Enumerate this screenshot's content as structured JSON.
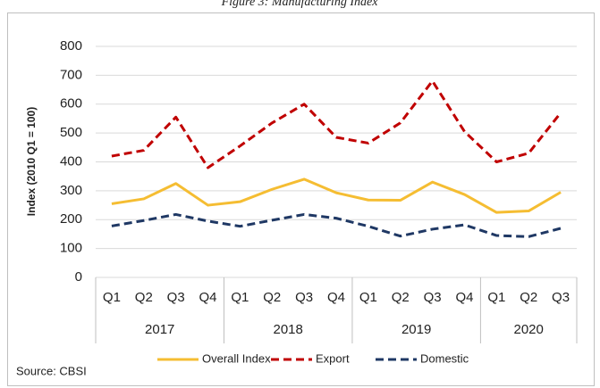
{
  "chart_data": {
    "type": "line",
    "title": "Figure 3: Manufacturing Index",
    "y_label": "Index (2010 Q1 = 100)",
    "source": "Source: CBSI",
    "categories": [
      "Q1",
      "Q2",
      "Q3",
      "Q4",
      "Q1",
      "Q2",
      "Q3",
      "Q4",
      "Q1",
      "Q2",
      "Q3",
      "Q4",
      "Q1",
      "Q2",
      "Q3"
    ],
    "category_groups": [
      {
        "label": "2017",
        "count": 4
      },
      {
        "label": "2018",
        "count": 4
      },
      {
        "label": "2019",
        "count": 4
      },
      {
        "label": "2020",
        "count": 3
      }
    ],
    "series": [
      {
        "name": "Overall Index",
        "color": "#f5bd32",
        "dash": "solid",
        "values": [
          255,
          272,
          325,
          250,
          262,
          305,
          340,
          293,
          268,
          267,
          330,
          287,
          225,
          230,
          295
        ]
      },
      {
        "name": "Export",
        "color": "#c00000",
        "dash": "dashed",
        "values": [
          420,
          440,
          555,
          380,
          455,
          535,
          600,
          485,
          465,
          535,
          680,
          505,
          400,
          430,
          570
        ]
      },
      {
        "name": "Domestic",
        "color": "#1f3864",
        "dash": "dashed",
        "values": [
          178,
          197,
          218,
          195,
          177,
          198,
          218,
          205,
          177,
          143,
          167,
          182,
          145,
          141,
          170
        ]
      }
    ],
    "ylim": [
      0,
      800
    ],
    "yticks": [
      0,
      100,
      200,
      300,
      400,
      500,
      600,
      700,
      800
    ],
    "grid": true,
    "legend": "bottom"
  }
}
